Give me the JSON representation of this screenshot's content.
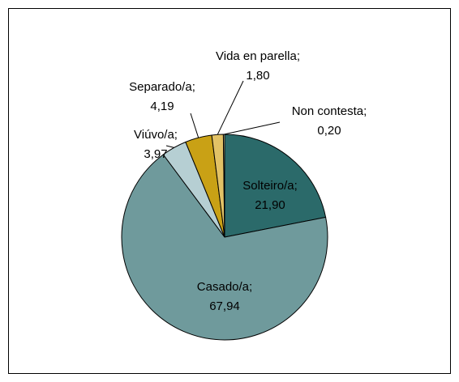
{
  "chart_data": {
    "type": "pie",
    "categories": [
      "Solteiro/a;",
      "Casado/a;",
      "Viúvo/a;",
      "Separado/a;",
      "Vida en parella;",
      "Non contesta;"
    ],
    "values": [
      21.9,
      67.94,
      3.97,
      4.19,
      1.8,
      0.2
    ],
    "value_labels": [
      "21,90",
      "67,94",
      "3,97",
      "4,19",
      "1,80",
      "0,20"
    ],
    "colors": [
      "#2b6a6a",
      "#6f9a9c",
      "#b6cfd3",
      "#c9a115",
      "#e2c266",
      "#f3e4a8"
    ]
  }
}
